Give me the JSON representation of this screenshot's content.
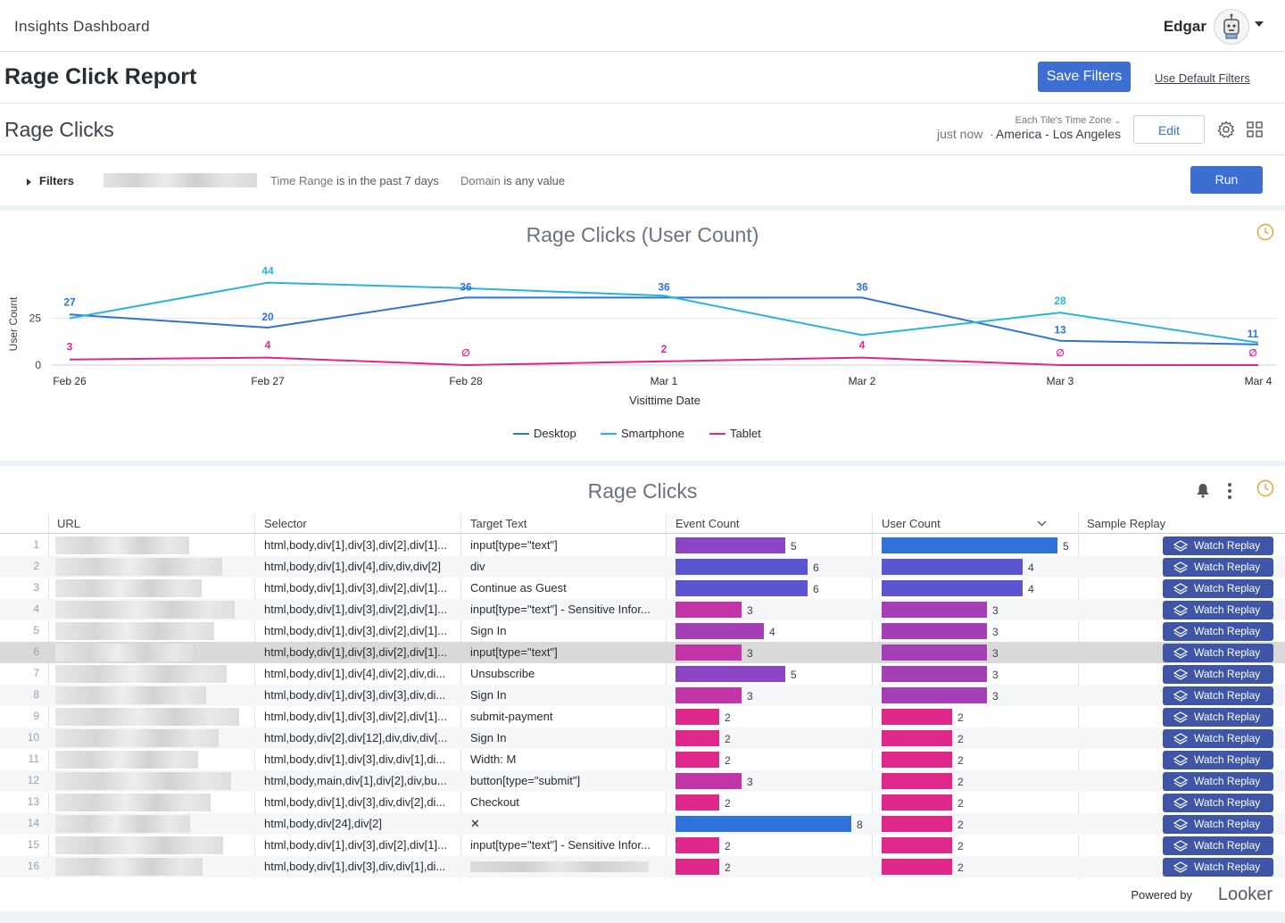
{
  "app": {
    "title": "Insights Dashboard",
    "user": "Edgar"
  },
  "report": {
    "title": "Rage Click Report",
    "save_label": "Save Filters",
    "default_label": "Use Default Filters"
  },
  "dashboard": {
    "title": "Rage Clicks",
    "refreshed": "just now",
    "separator": "·",
    "tz_label": "Each Tile's Time Zone",
    "tz_value": "America - Los Angeles",
    "edit_label": "Edit"
  },
  "filters": {
    "label": "Filters",
    "time_field": "Time Range",
    "time_cond": "is in the past 7 days",
    "domain_field": "Domain",
    "domain_cond": "is any value",
    "run_label": "Run"
  },
  "colors": {
    "desktop": "#2f73d8",
    "smartphone": "#29b5d4",
    "tablet": "#e0288a",
    "button": "#3c6fd1",
    "replay": "#3f55a8",
    "clock": "#e8a13a"
  },
  "chart_data": {
    "type": "line",
    "title": "Rage Clicks (User Count)",
    "xlabel": "Visittime Date",
    "ylabel": "User Count",
    "y_ticks": [
      "0",
      "25"
    ],
    "ylim": [
      0,
      50
    ],
    "categories": [
      "Feb 26",
      "Feb 27",
      "Feb 28",
      "Mar 1",
      "Mar 2",
      "Mar 3",
      "Mar 4"
    ],
    "series": [
      {
        "name": "Desktop",
        "values": [
          27,
          20,
          36,
          36,
          36,
          13,
          11
        ],
        "labels": [
          "27",
          "20",
          "36",
          "36",
          "36",
          "13",
          "11"
        ]
      },
      {
        "name": "Smartphone",
        "values": [
          25,
          44,
          41,
          37,
          16,
          28,
          12
        ],
        "labels": [
          "",
          "44",
          "",
          "",
          "",
          "28",
          ""
        ]
      },
      {
        "name": "Tablet",
        "values": [
          3,
          4,
          0,
          2,
          4,
          0,
          0
        ],
        "labels": [
          "3",
          "4",
          "∅",
          "2",
          "4",
          "∅",
          "∅"
        ]
      }
    ],
    "legend": "bottom-center",
    "grid": true
  },
  "table": {
    "title": "Rage Clicks",
    "headers": [
      "URL",
      "Selector",
      "Target Text",
      "Event Count",
      "User Count",
      "Sample Replay"
    ],
    "replay_label": "Watch Replay",
    "max_event": 8,
    "max_user": 5,
    "rows": [
      {
        "n": "1",
        "selector": "html,body,div[1],div[3],div[2],div[1]...",
        "target": "input[type=\"text\"]",
        "events": 5,
        "users": 5
      },
      {
        "n": "2",
        "selector": "html,body,div[1],div[4],div,div,div[2]",
        "target": "div",
        "events": 6,
        "users": 4
      },
      {
        "n": "3",
        "selector": "html,body,div[1],div[3],div[2],div[1]...",
        "target": "Continue as Guest",
        "events": 6,
        "users": 4
      },
      {
        "n": "4",
        "selector": "html,body,div[1],div[3],div[2],div[1]...",
        "target": "input[type=\"text\"] - Sensitive Infor...",
        "events": 3,
        "users": 3
      },
      {
        "n": "5",
        "selector": "html,body,div[1],div[3],div[2],div[1]...",
        "target": "Sign In",
        "events": 4,
        "users": 3
      },
      {
        "n": "6",
        "selector": "html,body,div[1],div[3],div[2],div[1]...",
        "target": "input[type=\"text\"]",
        "events": 3,
        "users": 3
      },
      {
        "n": "7",
        "selector": "html,body,div[1],div[4],div[2],div,di...",
        "target": "Unsubscribe",
        "events": 5,
        "users": 3
      },
      {
        "n": "8",
        "selector": "html,body,div[1],div[3],div[3],div,di...",
        "target": "Sign In",
        "events": 3,
        "users": 3
      },
      {
        "n": "9",
        "selector": "html,body,div[1],div[3],div[2],div[1]...",
        "target": "submit-payment",
        "events": 2,
        "users": 2
      },
      {
        "n": "10",
        "selector": "html,body,div[2],div[12],div,div,div[...",
        "target": "Sign In",
        "events": 2,
        "users": 2
      },
      {
        "n": "11",
        "selector": "html,body,div[1],div[3],div,div[1],di...",
        "target": "Width: M",
        "events": 2,
        "users": 2
      },
      {
        "n": "12",
        "selector": "html,body,main,div[1],div[2],div,bu...",
        "target": "button[type=\"submit\"]",
        "events": 3,
        "users": 2
      },
      {
        "n": "13",
        "selector": "html,body,div[1],div[3],div,div[2],di...",
        "target": "Checkout",
        "events": 2,
        "users": 2
      },
      {
        "n": "14",
        "selector": "html,body,div[24],div[2]",
        "target": "✕",
        "events": 8,
        "users": 2
      },
      {
        "n": "15",
        "selector": "html,body,div[1],div[3],div[2],div[1]...",
        "target": "input[type=\"text\"] - Sensitive Infor...",
        "events": 2,
        "users": 2
      },
      {
        "n": "16",
        "selector": "html,body,div[1],div[3],div,div[1],di...",
        "target": "",
        "events": 2,
        "users": 2
      }
    ]
  },
  "footer": {
    "powered": "Powered by",
    "brand": "Looker"
  }
}
